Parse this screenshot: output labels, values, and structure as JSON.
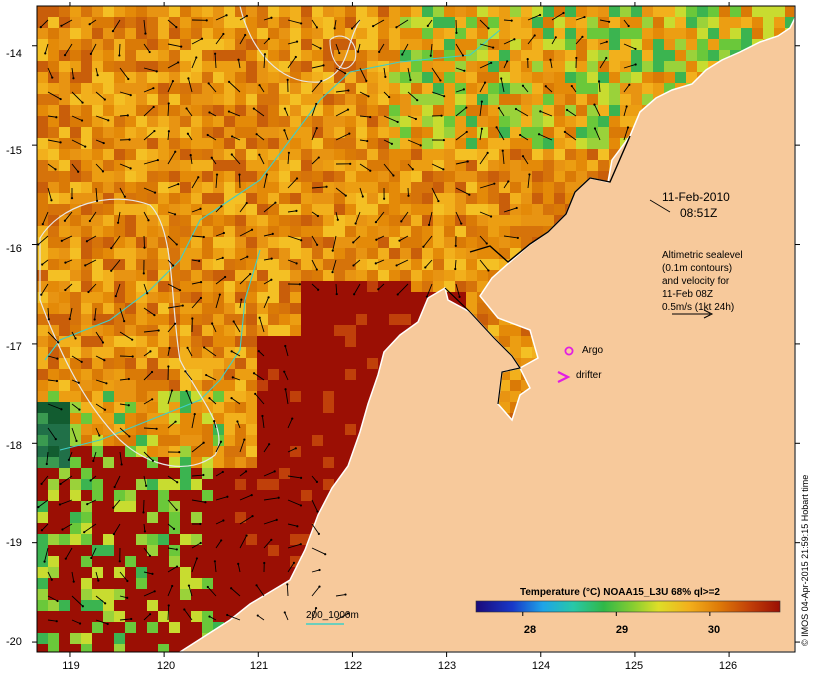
{
  "map": {
    "extent": {
      "lon": [
        118.65,
        126.7
      ],
      "lat": [
        -20.1,
        -13.6
      ]
    },
    "y_ticks": [
      {
        "value": -14,
        "label": "-14"
      },
      {
        "value": -15,
        "label": "-15"
      },
      {
        "value": -16,
        "label": "-16"
      },
      {
        "value": -17,
        "label": "-17"
      },
      {
        "value": -18,
        "label": "-18"
      },
      {
        "value": -19,
        "label": "-19"
      },
      {
        "value": -20,
        "label": "-20"
      }
    ],
    "x_ticks": [
      {
        "value": 119,
        "label": "119"
      },
      {
        "value": 120,
        "label": "120"
      },
      {
        "value": 121,
        "label": "121"
      },
      {
        "value": 122,
        "label": "122"
      },
      {
        "value": 123,
        "label": "123"
      },
      {
        "value": 124,
        "label": "124"
      },
      {
        "value": 125,
        "label": "125"
      },
      {
        "value": 126,
        "label": "126"
      }
    ],
    "colors": {
      "land": "#f7c99b",
      "hot": "#9b0f04",
      "contour": "#e8e8e8",
      "isobath": "#3fcfc8",
      "argo": "#e21ee2"
    },
    "date_line1": "11-Feb-2010",
    "date_line2": "08:51Z",
    "altimetry_lines": [
      "Altimetric sealevel",
      "(0.1m contours)",
      "and velocity for",
      "11-Feb 08Z",
      "0.5m/s (1kt 24h)"
    ],
    "argo_label": "Argo",
    "drifter_label": "drifter",
    "isobath_label": "200_1000m",
    "colorbar_title": "Temperature (°C) NOAA15_L3U 68% ql>=2",
    "colorbar_ticks": [
      {
        "value": 28,
        "label": "28"
      },
      {
        "value": 29,
        "label": "29"
      },
      {
        "value": 30,
        "label": "30"
      }
    ],
    "colorbar_range": [
      27.5,
      30.75
    ],
    "credit": "© IMOS 04-Apr-2015 21:59:15 Hobart time"
  }
}
